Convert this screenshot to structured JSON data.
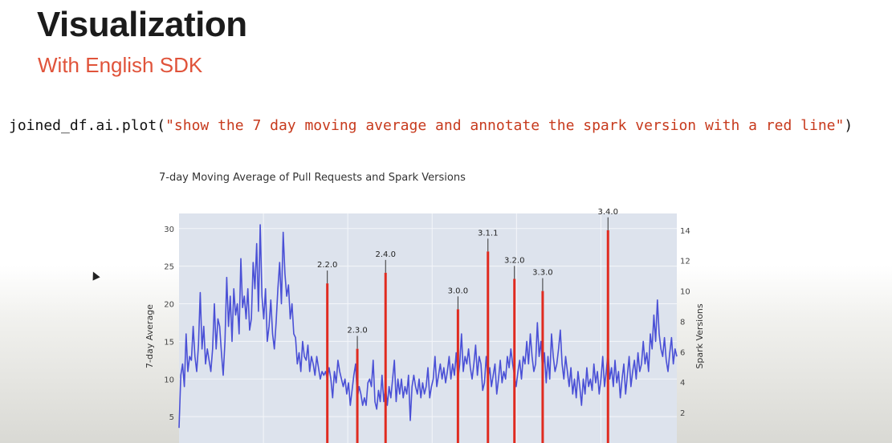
{
  "slide": {
    "title": "Visualization",
    "subtitle": "With English SDK"
  },
  "code": {
    "prefix": "joined_df.ai.plot(",
    "argument": "\"show the 7 day moving average and annotate the spark version with a red line\"",
    "suffix": ")"
  },
  "chart_data": {
    "type": "line",
    "title": "7-day Moving Average of Pull Requests and Spark Versions",
    "ylabel": "7-day Average",
    "y2label": "Spark Versions",
    "ylim": [
      1.5,
      32
    ],
    "y2lim": [
      0,
      15.1
    ],
    "yticks": [
      "5",
      "10",
      "15",
      "20",
      "25",
      "30"
    ],
    "y2ticks": [
      "2",
      "4",
      "6",
      "8",
      "10",
      "12",
      "14"
    ],
    "grid": true,
    "colors": {
      "line": "#4a50d6",
      "version": "#e02b20",
      "plot_bg": "#dde3ed",
      "grid": "#f4f6fa"
    },
    "series": [
      {
        "points": [
          [
            0,
            3.5
          ],
          [
            1,
            10.5
          ],
          [
            2,
            12
          ],
          [
            3,
            9
          ],
          [
            4,
            16
          ],
          [
            5,
            11
          ],
          [
            6,
            13
          ],
          [
            7,
            12.5
          ],
          [
            8,
            17
          ],
          [
            9,
            13
          ],
          [
            10,
            11
          ],
          [
            11,
            14.5
          ],
          [
            12,
            21.5
          ],
          [
            13,
            14
          ],
          [
            14,
            17
          ],
          [
            15,
            12
          ],
          [
            16,
            14
          ],
          [
            17,
            12.5
          ],
          [
            18,
            11
          ],
          [
            19,
            14
          ],
          [
            20,
            20
          ],
          [
            21,
            14
          ],
          [
            22,
            18
          ],
          [
            23,
            17
          ],
          [
            24,
            13.5
          ],
          [
            25,
            10.5
          ],
          [
            26,
            15
          ],
          [
            27,
            23.5
          ],
          [
            28,
            17
          ],
          [
            29,
            21
          ],
          [
            30,
            15
          ],
          [
            31,
            22
          ],
          [
            32,
            18.5
          ],
          [
            33,
            20
          ],
          [
            34,
            16
          ],
          [
            35,
            26
          ],
          [
            36,
            19.5
          ],
          [
            37,
            21
          ],
          [
            38,
            18
          ],
          [
            39,
            22
          ],
          [
            40,
            16.5
          ],
          [
            41,
            18
          ],
          [
            42,
            25.5
          ],
          [
            43,
            22
          ],
          [
            44,
            28
          ],
          [
            45,
            19
          ],
          [
            46,
            30.5
          ],
          [
            47,
            21
          ],
          [
            48,
            18
          ],
          [
            49,
            22
          ],
          [
            50,
            15
          ],
          [
            51,
            17
          ],
          [
            52,
            20.5
          ],
          [
            53,
            16
          ],
          [
            54,
            14
          ],
          [
            55,
            17.5
          ],
          [
            56,
            22
          ],
          [
            57,
            25.5
          ],
          [
            58,
            20
          ],
          [
            59,
            29.5
          ],
          [
            60,
            24
          ],
          [
            61,
            21
          ],
          [
            62,
            22.5
          ],
          [
            63,
            18
          ],
          [
            64,
            20
          ],
          [
            65,
            16
          ],
          [
            66,
            15.5
          ],
          [
            67,
            12
          ],
          [
            68,
            13.5
          ],
          [
            69,
            11
          ],
          [
            70,
            15
          ],
          [
            71,
            13
          ],
          [
            72,
            12.5
          ],
          [
            73,
            14.5
          ],
          [
            74,
            11
          ],
          [
            75,
            13
          ],
          [
            76,
            12
          ],
          [
            77,
            10.5
          ],
          [
            78,
            13
          ],
          [
            79,
            11.5
          ],
          [
            80,
            10
          ],
          [
            81,
            11
          ],
          [
            82,
            10.5
          ],
          [
            83,
            11
          ],
          [
            84,
            10
          ],
          [
            85,
            11.5
          ],
          [
            86,
            10
          ],
          [
            87,
            7.5
          ],
          [
            88,
            11
          ],
          [
            89,
            9.5
          ],
          [
            90,
            12.5
          ],
          [
            91,
            11
          ],
          [
            92,
            10
          ],
          [
            93,
            9
          ],
          [
            94,
            10
          ],
          [
            95,
            8
          ],
          [
            96,
            9.5
          ],
          [
            97,
            6.5
          ],
          [
            98,
            8.5
          ],
          [
            99,
            10.5
          ],
          [
            100,
            12
          ],
          [
            101,
            7.5
          ],
          [
            102,
            9
          ],
          [
            103,
            8
          ],
          [
            104,
            6.5
          ],
          [
            105,
            7.5
          ],
          [
            106,
            6.5
          ],
          [
            107,
            9.5
          ],
          [
            108,
            10
          ],
          [
            109,
            9
          ],
          [
            110,
            12.5
          ],
          [
            111,
            7
          ],
          [
            112,
            6
          ],
          [
            113,
            8.5
          ],
          [
            114,
            7
          ],
          [
            115,
            10.5
          ],
          [
            116,
            7
          ],
          [
            117,
            9
          ],
          [
            118,
            6.5
          ],
          [
            119,
            9
          ],
          [
            120,
            7.5
          ],
          [
            121,
            10
          ],
          [
            122,
            12.5
          ],
          [
            123,
            7
          ],
          [
            124,
            10
          ],
          [
            125,
            8
          ],
          [
            126,
            10
          ],
          [
            127,
            7.5
          ],
          [
            128,
            9
          ],
          [
            129,
            8
          ],
          [
            130,
            10.5
          ],
          [
            131,
            4.5
          ],
          [
            132,
            9
          ],
          [
            133,
            10.5
          ],
          [
            134,
            9
          ],
          [
            135,
            8
          ],
          [
            136,
            10
          ],
          [
            137,
            7.5
          ],
          [
            138,
            9.5
          ],
          [
            139,
            8
          ],
          [
            140,
            9
          ],
          [
            141,
            11.5
          ],
          [
            142,
            7.5
          ],
          [
            143,
            9
          ],
          [
            144,
            10
          ],
          [
            145,
            13
          ],
          [
            146,
            9
          ],
          [
            147,
            10.5
          ],
          [
            148,
            12
          ],
          [
            149,
            10
          ],
          [
            150,
            11.5
          ],
          [
            151,
            9.5
          ],
          [
            152,
            11
          ],
          [
            153,
            13
          ],
          [
            154,
            10
          ],
          [
            155,
            12
          ],
          [
            156,
            10.5
          ],
          [
            157,
            13.5
          ],
          [
            158,
            10
          ],
          [
            159,
            12
          ],
          [
            160,
            16
          ],
          [
            161,
            11
          ],
          [
            162,
            13
          ],
          [
            163,
            12
          ],
          [
            164,
            14
          ],
          [
            165,
            11.5
          ],
          [
            166,
            10
          ],
          [
            167,
            12
          ],
          [
            168,
            14.5
          ],
          [
            169,
            10.5
          ],
          [
            170,
            13
          ],
          [
            171,
            12
          ],
          [
            172,
            8.5
          ],
          [
            173,
            9.5
          ],
          [
            174,
            13
          ],
          [
            175,
            10
          ],
          [
            176,
            11.5
          ],
          [
            177,
            9
          ],
          [
            178,
            10.5
          ],
          [
            179,
            12
          ],
          [
            180,
            8
          ],
          [
            181,
            10
          ],
          [
            182,
            12.5
          ],
          [
            183,
            9.5
          ],
          [
            184,
            11
          ],
          [
            185,
            10
          ],
          [
            186,
            13
          ],
          [
            187,
            11.5
          ],
          [
            188,
            14
          ],
          [
            189,
            12
          ],
          [
            190,
            10.5
          ],
          [
            191,
            9
          ],
          [
            192,
            11
          ],
          [
            193,
            12.5
          ],
          [
            194,
            10
          ],
          [
            195,
            13
          ],
          [
            196,
            12
          ],
          [
            197,
            15
          ],
          [
            198,
            12
          ],
          [
            199,
            16
          ],
          [
            200,
            13
          ],
          [
            201,
            11
          ],
          [
            202,
            12
          ],
          [
            203,
            17.5
          ],
          [
            204,
            13
          ],
          [
            205,
            15
          ],
          [
            206,
            11
          ],
          [
            207,
            13.5
          ],
          [
            208,
            9.5
          ],
          [
            209,
            13
          ],
          [
            210,
            10
          ],
          [
            211,
            16
          ],
          [
            212,
            13
          ],
          [
            213,
            11
          ],
          [
            214,
            12
          ],
          [
            215,
            14
          ],
          [
            216,
            16.5
          ],
          [
            217,
            12
          ],
          [
            218,
            10
          ],
          [
            219,
            13
          ],
          [
            220,
            11
          ],
          [
            221,
            9
          ],
          [
            222,
            11.5
          ],
          [
            223,
            8
          ],
          [
            224,
            10
          ],
          [
            225,
            7.5
          ],
          [
            226,
            11
          ],
          [
            227,
            9
          ],
          [
            228,
            6.5
          ],
          [
            229,
            10
          ],
          [
            230,
            8
          ],
          [
            231,
            11.5
          ],
          [
            232,
            9
          ],
          [
            233,
            10
          ],
          [
            234,
            8.5
          ],
          [
            235,
            12
          ],
          [
            236,
            9.5
          ],
          [
            237,
            11
          ],
          [
            238,
            8
          ],
          [
            239,
            10
          ],
          [
            240,
            13
          ],
          [
            241,
            9
          ],
          [
            242,
            11
          ],
          [
            243,
            13.5
          ],
          [
            244,
            10
          ],
          [
            245,
            11.5
          ],
          [
            246,
            9
          ],
          [
            247,
            12.5
          ],
          [
            248,
            9.5
          ],
          [
            249,
            11
          ],
          [
            250,
            7.5
          ],
          [
            251,
            10
          ],
          [
            252,
            12
          ],
          [
            253,
            8
          ],
          [
            254,
            10.5
          ],
          [
            255,
            13
          ],
          [
            256,
            9
          ],
          [
            257,
            11
          ],
          [
            258,
            12.5
          ],
          [
            259,
            10
          ],
          [
            260,
            13.5
          ],
          [
            261,
            11
          ],
          [
            262,
            12
          ],
          [
            263,
            15
          ],
          [
            264,
            12
          ],
          [
            265,
            13.5
          ],
          [
            266,
            11
          ],
          [
            267,
            16
          ],
          [
            268,
            14
          ],
          [
            269,
            18.5
          ],
          [
            270,
            15
          ],
          [
            271,
            20.5
          ],
          [
            272,
            16
          ],
          [
            273,
            14
          ],
          [
            274,
            13
          ],
          [
            275,
            15.5
          ],
          [
            276,
            12.5
          ],
          [
            277,
            11
          ],
          [
            278,
            13.5
          ],
          [
            279,
            15.5
          ],
          [
            280,
            12
          ],
          [
            281,
            14
          ],
          [
            282,
            13
          ]
        ]
      }
    ],
    "versions": [
      {
        "label": "2.2.0",
        "x": 84,
        "value": 10.5
      },
      {
        "label": "2.3.0",
        "x": 101,
        "value": 6.2
      },
      {
        "label": "2.4.0",
        "x": 117,
        "value": 11.2
      },
      {
        "label": "3.0.0",
        "x": 158,
        "value": 8.8
      },
      {
        "label": "3.1.1",
        "x": 175,
        "value": 12.6
      },
      {
        "label": "3.2.0",
        "x": 190,
        "value": 10.8
      },
      {
        "label": "3.3.0",
        "x": 206,
        "value": 10.0
      },
      {
        "label": "3.4.0",
        "x": 243,
        "value": 14.0
      }
    ]
  }
}
